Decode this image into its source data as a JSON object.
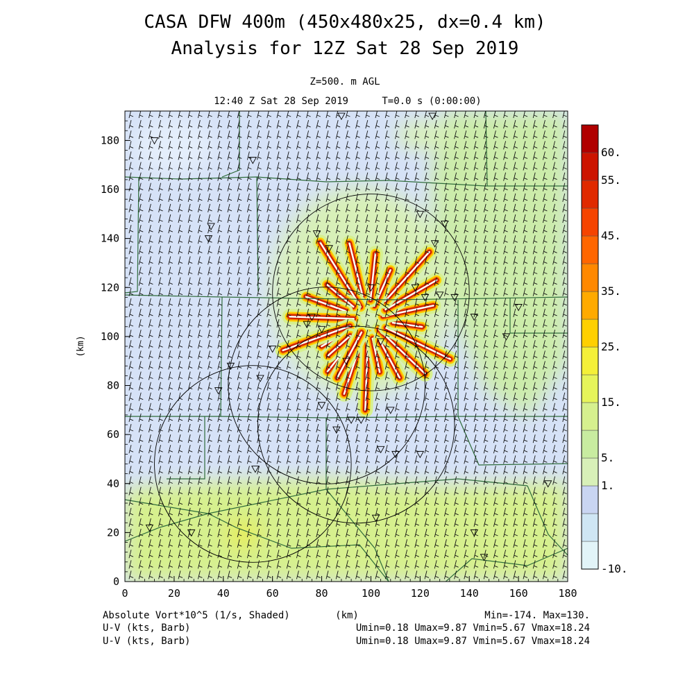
{
  "header": {
    "title_line1": "CASA DFW 400m (450x480x25, dx=0.4 km)",
    "title_line2": "Analysis for 12Z Sat 28 Sep 2019",
    "level_label": "Z=500. m AGL",
    "time_label": "12:40 Z Sat 28 Sep 2019",
    "elapsed_label": "T=0.0 s (0:00:00)"
  },
  "footer": {
    "field_label": "Absolute Vort*10^5 (1/s, Shaded)",
    "barb_label_1": "U-V (kts, Barb)",
    "barb_label_2": "U-V (kts, Barb)",
    "xunit_label": "(km)",
    "minmax": "Min=-174. Max=130.",
    "uv_stats_1": "Umin=0.18 Umax=9.87 Vmin=5.67 Vmax=18.24",
    "uv_stats_2": "Umin=0.18 Umax=9.87 Vmin=5.67 Vmax=18.24"
  },
  "colors": {
    "background_field": "#d6e2f7",
    "field_low": "#e4eefb",
    "field_green_pale": "#d8f0b8",
    "field_green": "#c8eca0",
    "field_yellowgreen": "#dcf28a",
    "vortex_red": "#cc2200",
    "vortex_orange": "#ff8800",
    "vortex_yellow": "#ffd000",
    "county_lines": "#2e6b3a",
    "circles": "#000000"
  },
  "chart_data": {
    "type": "heatmap",
    "title": "CASA DFW 400m (450x480x25, dx=0.4 km)",
    "subtitle": "Analysis for 12Z Sat 28 Sep 2019",
    "xlabel": "(km)",
    "ylabel": "(km)",
    "xlim": [
      0,
      180
    ],
    "ylim": [
      0,
      192
    ],
    "x_ticks": [
      "0",
      "20",
      "40",
      "60",
      "80",
      "100",
      "120",
      "140",
      "160",
      "180"
    ],
    "y_ticks": [
      "0",
      "20",
      "40",
      "60",
      "80",
      "100",
      "120",
      "140",
      "160",
      "180"
    ],
    "field": "Absolute Vort*10^5 (1/s)",
    "field_min": -174,
    "field_max": 130,
    "colorbar": {
      "labels": [
        "60.",
        "55.",
        "45.",
        "35.",
        "25.",
        "15.",
        "5.",
        "1.",
        "-10."
      ],
      "levels": [
        -10,
        -5,
        0,
        1,
        5,
        10,
        15,
        20,
        25,
        30,
        35,
        40,
        45,
        50,
        55,
        60
      ],
      "colors": [
        "#e2f4f8",
        "#cfe6f4",
        "#c9d5f2",
        "#d8f0b8",
        "#c8eca0",
        "#d6f08e",
        "#e6f45a",
        "#f4f038",
        "#ffd000",
        "#ffaa00",
        "#ff8800",
        "#ff6600",
        "#f54400",
        "#e02a00",
        "#cc1400",
        "#b00000"
      ]
    },
    "radar_circles_center_km": [
      [
        100,
        118
      ],
      [
        82,
        80
      ],
      [
        94,
        64
      ],
      [
        52,
        48
      ]
    ],
    "radar_circles_radius_km": 40,
    "barb_units": "kts",
    "u_range": [
      0.18,
      9.87
    ],
    "v_range": [
      5.67,
      18.24
    ]
  }
}
